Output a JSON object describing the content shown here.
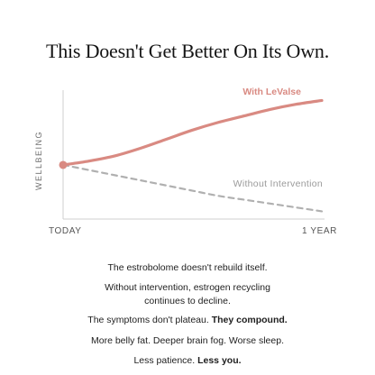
{
  "title": "This Doesn't Get Better On Its Own.",
  "chart_data": {
    "type": "line",
    "ylabel": "WELLBEING",
    "x_ticks": [
      "TODAY",
      "1 YEAR"
    ],
    "x": [
      0,
      0.1,
      0.2,
      0.3,
      0.4,
      0.5,
      0.6,
      0.7,
      0.8,
      0.9,
      1.0
    ],
    "ylim": [
      0,
      1
    ],
    "series": [
      {
        "name": "With LeValse",
        "color": "#d98a82",
        "style": "solid",
        "values": [
          0.42,
          0.45,
          0.49,
          0.55,
          0.62,
          0.69,
          0.75,
          0.8,
          0.85,
          0.89,
          0.92
        ]
      },
      {
        "name": "Without Intervention",
        "color": "#b0b0b0",
        "style": "dashed",
        "values": [
          0.42,
          0.38,
          0.34,
          0.3,
          0.26,
          0.22,
          0.18,
          0.15,
          0.12,
          0.09,
          0.06
        ]
      }
    ],
    "start_marker_color": "#d98a82",
    "grid": false
  },
  "lines": {
    "l1": "The estrobolome doesn't rebuild itself.",
    "l2a": "Without intervention, estrogen recycling",
    "l2b": "continues to decline.",
    "l3_normal": "The symptoms don't plateau.",
    "l3_bold": "They compound.",
    "l4": "More belly fat. Deeper brain fog. Worse sleep.",
    "l5_normal": "Less patience.",
    "l5_bold": "Less you."
  }
}
